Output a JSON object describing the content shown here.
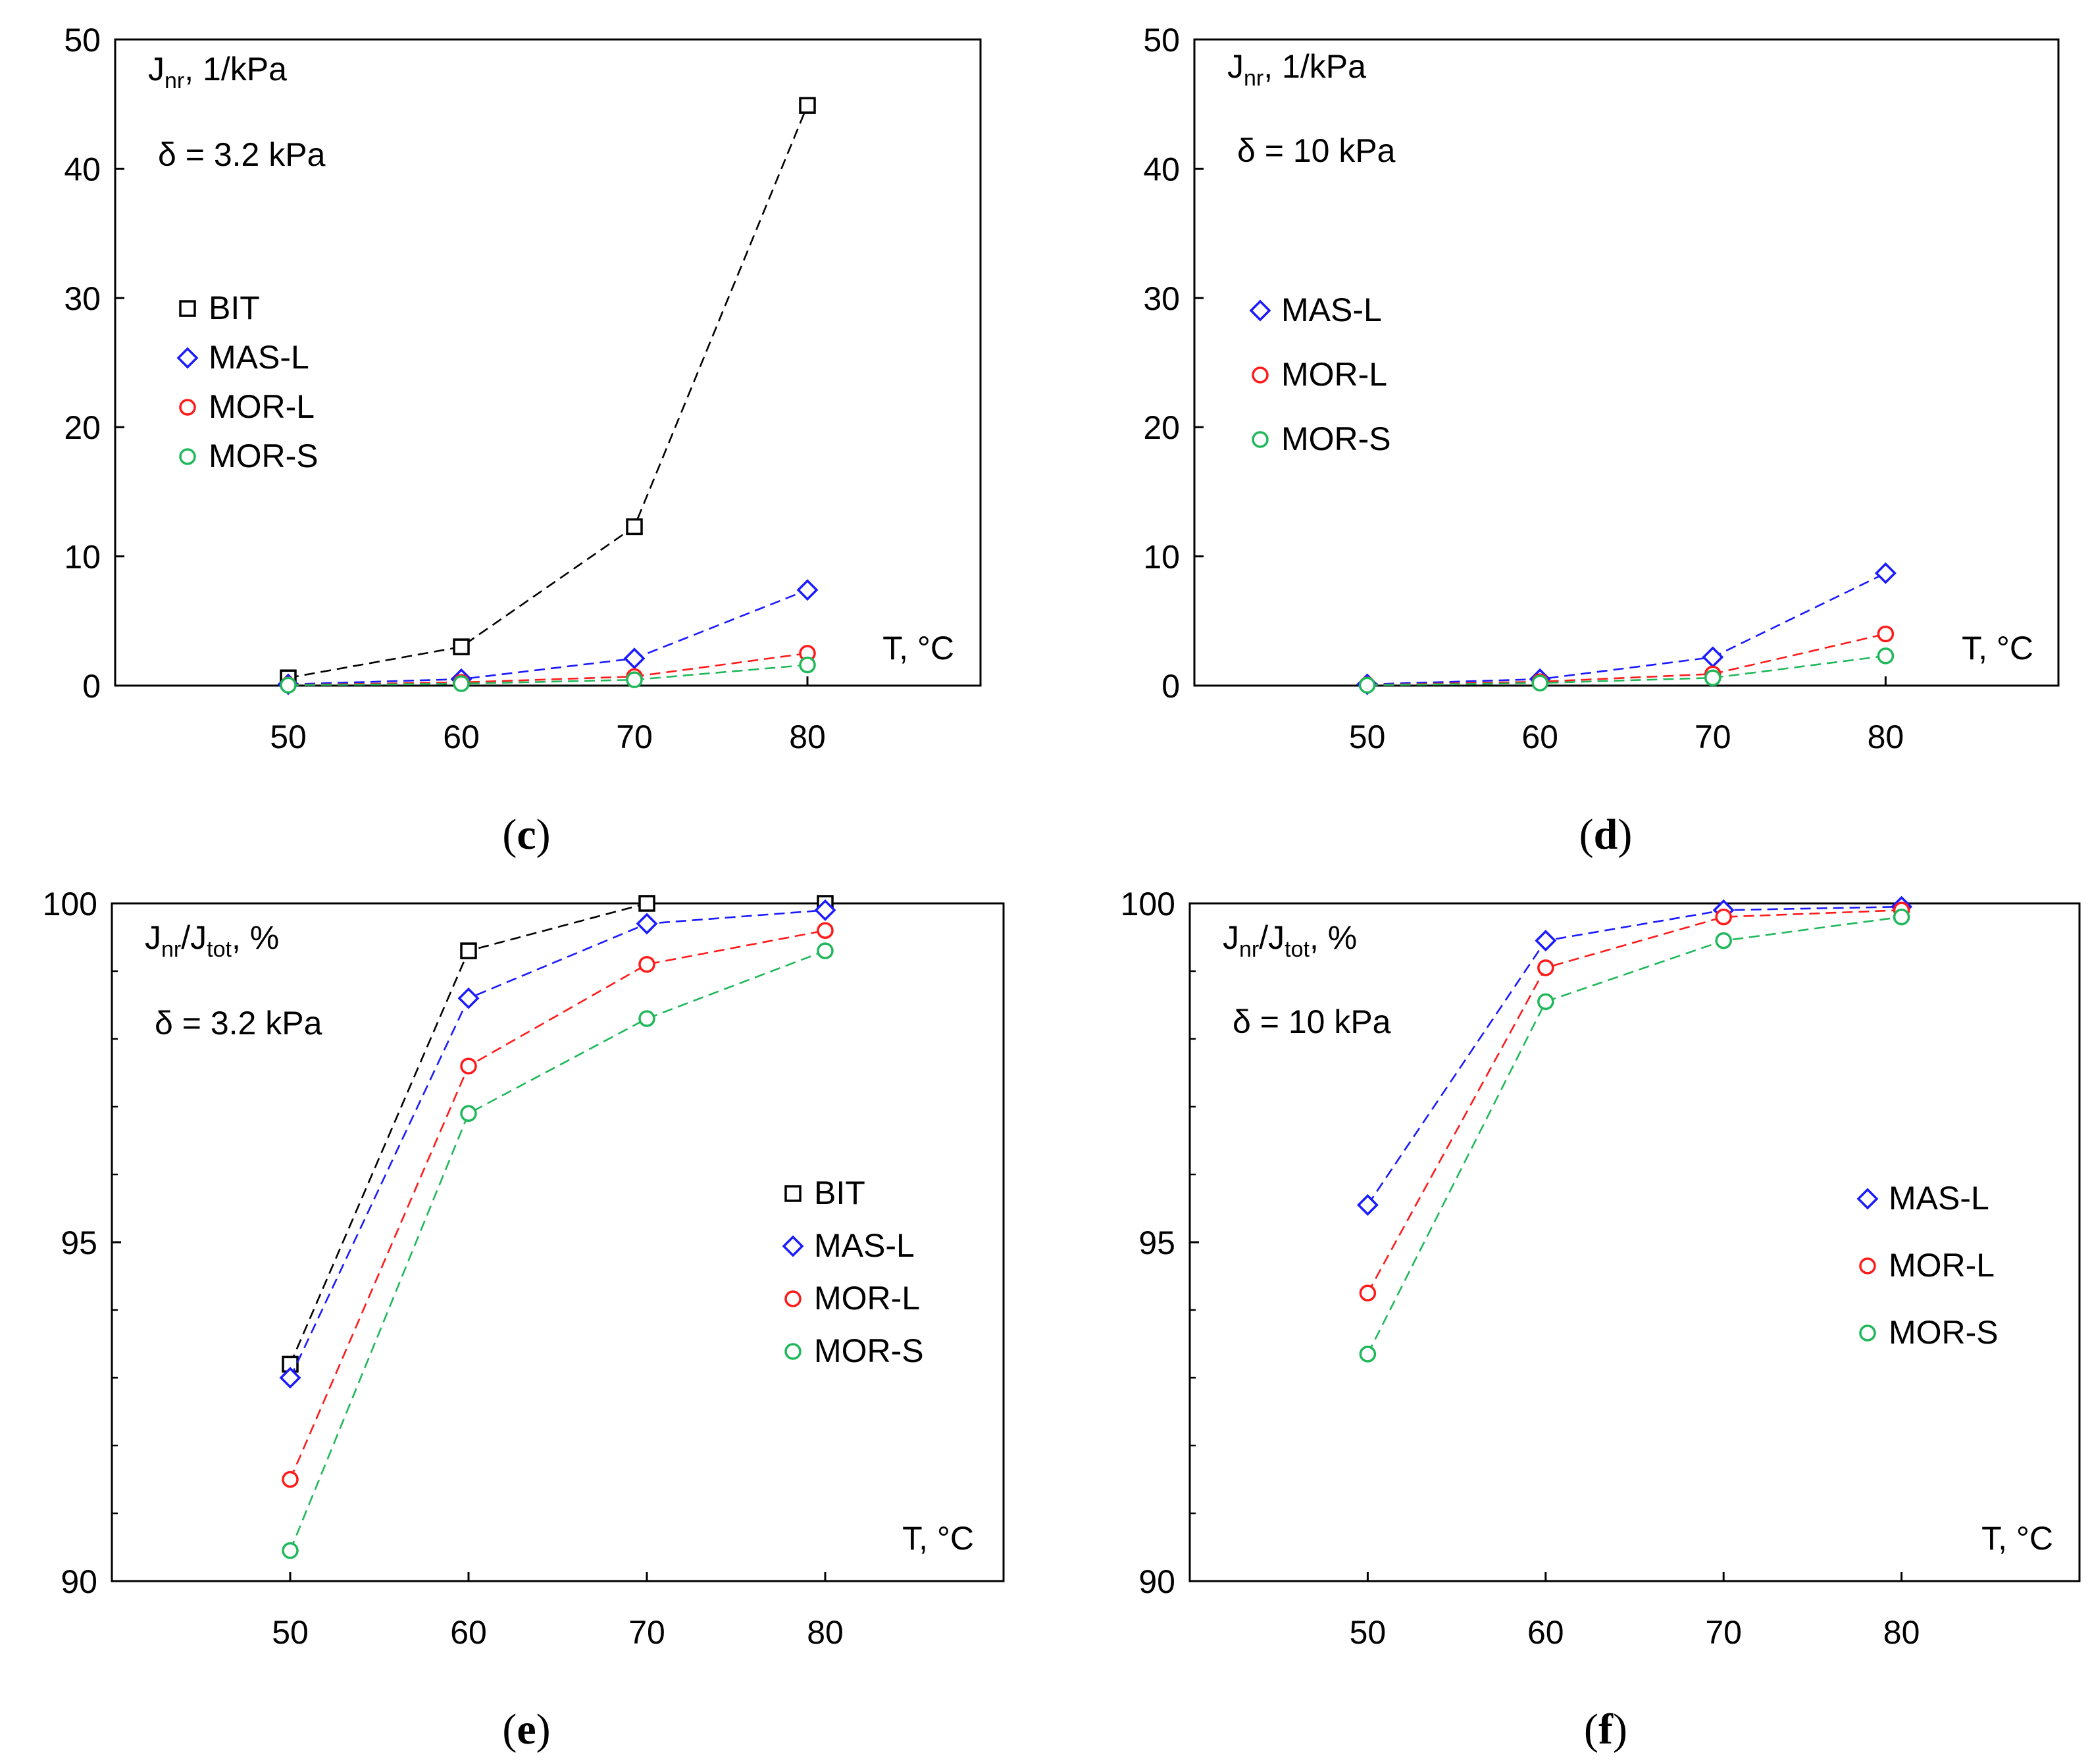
{
  "colors": {
    "BIT": "#000000",
    "MAS-L": "#1a1aff",
    "MOR-L": "#ff1a1a",
    "MOR-S": "#1fb85a"
  },
  "chart_data": [
    {
      "id": "c",
      "caption": {
        "open": "(",
        "letter": "c",
        "close": ")"
      },
      "type": "line",
      "x": [
        50,
        60,
        70,
        80
      ],
      "xticks": [
        "50",
        "60",
        "70",
        "80"
      ],
      "xlim": [
        40,
        90
      ],
      "ylim": [
        0,
        50
      ],
      "yticks": [
        "0",
        "10",
        "20",
        "30",
        "40",
        "50"
      ],
      "ylabel": {
        "main": "J",
        "sub": "nr",
        "rest": ", 1/kPa"
      },
      "stress": "δ = 3.2 kPa",
      "xlabel": "T, °C",
      "series": [
        {
          "name": "BIT",
          "marker": "square",
          "values": [
            0.6,
            3.0,
            12.3,
            44.9
          ]
        },
        {
          "name": "MAS-L",
          "marker": "diamond",
          "values": [
            0.1,
            0.5,
            2.1,
            7.4
          ]
        },
        {
          "name": "MOR-L",
          "marker": "circle",
          "values": [
            0.05,
            0.25,
            0.7,
            2.5
          ]
        },
        {
          "name": "MOR-S",
          "marker": "circle",
          "values": [
            0.03,
            0.15,
            0.45,
            1.6
          ]
        }
      ],
      "legend": {
        "placement": "left-middle",
        "entries": [
          "BIT",
          "MAS-L",
          "MOR-L",
          "MOR-S"
        ]
      }
    },
    {
      "id": "d",
      "caption": {
        "open": "(",
        "letter": "d",
        "close": ")"
      },
      "type": "line",
      "x": [
        50,
        60,
        70,
        80
      ],
      "xticks": [
        "50",
        "60",
        "70",
        "80"
      ],
      "xlim": [
        40,
        90
      ],
      "ylim": [
        0,
        50
      ],
      "yticks": [
        "0",
        "10",
        "20",
        "30",
        "40",
        "50"
      ],
      "ylabel": {
        "main": "J",
        "sub": "nr",
        "rest": ", 1/kPa"
      },
      "stress": "δ = 10 kPa",
      "xlabel": "T, °C",
      "series": [
        {
          "name": "MAS-L",
          "marker": "diamond",
          "values": [
            0.1,
            0.5,
            2.2,
            8.7
          ]
        },
        {
          "name": "MOR-L",
          "marker": "circle",
          "values": [
            0.05,
            0.3,
            0.9,
            4.0
          ]
        },
        {
          "name": "MOR-S",
          "marker": "circle",
          "values": [
            0.03,
            0.2,
            0.6,
            2.3
          ]
        }
      ],
      "legend": {
        "placement": "left-middle",
        "entries": [
          "MAS-L",
          "MOR-L",
          "MOR-S"
        ]
      }
    },
    {
      "id": "e",
      "caption": {
        "open": "(",
        "letter": "e",
        "close": ")"
      },
      "type": "line",
      "x": [
        50,
        60,
        70,
        80
      ],
      "xticks": [
        "50",
        "60",
        "70",
        "80"
      ],
      "xlim": [
        40,
        90
      ],
      "ylim": [
        90,
        100
      ],
      "yticks": [
        "90",
        "95",
        "100"
      ],
      "yminor": 1,
      "ylabel": {
        "main": "J",
        "sub": "nr",
        "mid": "/J",
        "sub2": "tot",
        "rest": ", %"
      },
      "stress": "δ = 3.2 kPa",
      "xlabel": "T, °C",
      "series": [
        {
          "name": "BIT",
          "marker": "square",
          "values": [
            93.2,
            99.3,
            100.0,
            100.0
          ]
        },
        {
          "name": "MAS-L",
          "marker": "diamond",
          "values": [
            93.0,
            98.6,
            99.7,
            99.9
          ]
        },
        {
          "name": "MOR-L",
          "marker": "circle",
          "values": [
            91.5,
            97.6,
            99.1,
            99.6
          ]
        },
        {
          "name": "MOR-S",
          "marker": "circle",
          "values": [
            90.45,
            96.9,
            98.3,
            99.3
          ]
        }
      ],
      "legend": {
        "placement": "right-middle",
        "entries": [
          "BIT",
          "MAS-L",
          "MOR-L",
          "MOR-S"
        ]
      }
    },
    {
      "id": "f",
      "caption": {
        "open": "(",
        "letter": "f",
        "close": ")"
      },
      "type": "line",
      "x": [
        50,
        60,
        70,
        80
      ],
      "xticks": [
        "50",
        "60",
        "70",
        "80"
      ],
      "xlim": [
        40,
        90
      ],
      "ylim": [
        90,
        100
      ],
      "yticks": [
        "90",
        "95",
        "100"
      ],
      "yminor": 1,
      "ylabel": {
        "main": "J",
        "sub": "nr",
        "mid": "/J",
        "sub2": "tot",
        "rest": ", %"
      },
      "stress": "δ = 10 kPa",
      "xlabel": "T, °C",
      "series": [
        {
          "name": "MAS-L",
          "marker": "diamond",
          "values": [
            95.55,
            99.45,
            99.9,
            99.95
          ]
        },
        {
          "name": "MOR-L",
          "marker": "circle",
          "values": [
            94.25,
            99.05,
            99.8,
            99.9
          ]
        },
        {
          "name": "MOR-S",
          "marker": "circle",
          "values": [
            93.35,
            98.55,
            99.45,
            99.8
          ]
        }
      ],
      "legend": {
        "placement": "right-middle",
        "entries": [
          "MAS-L",
          "MOR-L",
          "MOR-S"
        ]
      }
    }
  ]
}
